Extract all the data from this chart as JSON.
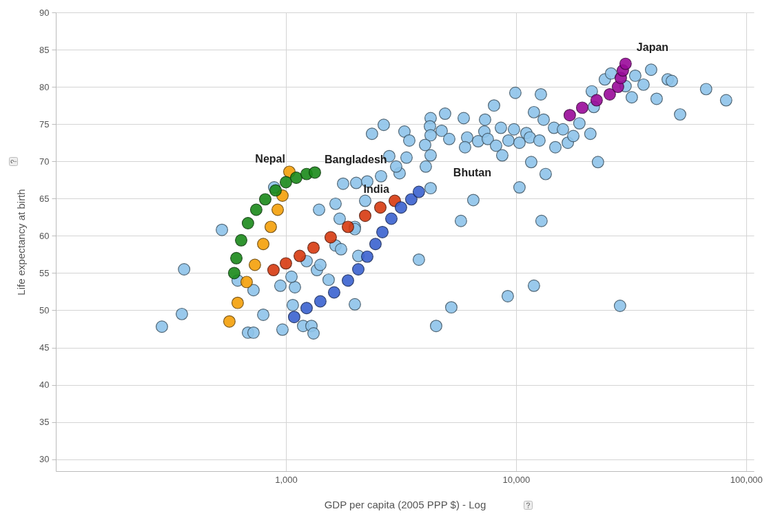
{
  "chart_data": {
    "type": "scatter",
    "xlabel": "GDP per capita (2005 PPP $) - Log",
    "ylabel": "Life expectancy at birth",
    "log": "x",
    "grid": true,
    "marker": "circle",
    "xlim": [
      100,
      108000
    ],
    "xticks": [
      {
        "value": 1000,
        "label": "1,000"
      },
      {
        "value": 10000,
        "label": "10,000"
      },
      {
        "value": 100000,
        "label": "100,000"
      }
    ],
    "ylim": [
      28.4,
      90
    ],
    "yticks": [
      30,
      35,
      40,
      45,
      50,
      55,
      60,
      65,
      70,
      75,
      80,
      85,
      90
    ],
    "series": [
      {
        "color": "#8ec4ea",
        "x": [
          289,
          353,
          361,
          527,
          617,
          684,
          723,
          966,
          797,
          723,
          946,
          1094,
          1057,
          1071,
          1188,
          1291,
          1318,
          1230,
          1364,
          1411,
          1533,
          1643,
          1736,
          1993,
          2063,
          1993,
          3782,
          5232,
          4495,
          9205,
          11960,
          28310,
          12900,
          5760,
          6522,
          10350,
          889,
          1393,
          1643,
          1772,
          2021,
          2256,
          2590,
          3119,
          2210,
          1993,
          1712,
          2661,
          3273,
          3436,
          4254,
          4225,
          4254,
          4026,
          4254,
          4053,
          4916,
          4751,
          5125,
          5924,
          6131,
          6003,
          6844,
          7334,
          8023,
          7283,
          7537,
          8190,
          8594,
          8713,
          9268,
          9931,
          9795,
          10350,
          11090,
          11480,
          11960,
          11640,
          12820,
          13180,
          12640,
          13450,
          14620,
          14820,
          15990,
          16790,
          17740,
          18850,
          21040,
          21340,
          21780,
          22700,
          24320,
          25880,
          29920,
          31840,
          32960,
          35810,
          38640,
          40830,
          45600,
          47540,
          51640,
          66990,
          81850,
          2366,
          3013,
          3342,
          2812,
          4254
        ],
        "values": [
          47.8,
          49.5,
          55.5,
          60.8,
          54.0,
          47.0,
          47.0,
          47.4,
          49.4,
          52.7,
          53.3,
          53.1,
          54.5,
          50.7,
          47.9,
          47.9,
          46.9,
          56.6,
          55.4,
          56.1,
          54.1,
          58.7,
          58.2,
          61.2,
          57.3,
          50.8,
          56.8,
          50.4,
          47.9,
          51.9,
          53.3,
          50.6,
          62.0,
          62.0,
          64.8,
          66.5,
          66.5,
          63.5,
          64.3,
          67.0,
          67.1,
          67.3,
          68.0,
          68.4,
          64.7,
          60.9,
          62.3,
          74.9,
          74.0,
          72.8,
          75.8,
          74.7,
          73.5,
          72.2,
          70.8,
          69.3,
          76.4,
          74.1,
          73.0,
          75.8,
          73.2,
          71.9,
          72.7,
          75.6,
          77.5,
          74.0,
          73.0,
          72.1,
          74.5,
          70.8,
          72.8,
          79.2,
          74.3,
          72.5,
          73.8,
          73.2,
          76.6,
          69.9,
          79.0,
          75.6,
          72.8,
          68.3,
          74.5,
          71.9,
          74.3,
          72.5,
          73.4,
          75.1,
          73.7,
          79.4,
          77.3,
          69.9,
          81.0,
          81.8,
          80.1,
          78.6,
          81.5,
          80.3,
          82.3,
          78.4,
          81.0,
          80.8,
          76.3,
          79.7,
          78.2,
          73.7,
          69.3,
          70.5,
          70.7,
          66.4
        ]
      },
      {
        "name": "Nepal",
        "color": "#f5a00a",
        "x": [
          568,
          617,
          675,
          733,
          797,
          859,
          921,
          966,
          1035
        ],
        "values": [
          48.5,
          51.0,
          53.8,
          56.1,
          58.9,
          61.2,
          63.5,
          65.4,
          68.6
        ]
      },
      {
        "name": "Bangladesh",
        "color": "#1a8a1a",
        "x": [
          596,
          609,
          639,
          684,
          743,
          813,
          902,
          1000,
          1109,
          1230,
          1336
        ],
        "values": [
          55.0,
          57.0,
          59.4,
          61.7,
          63.5,
          64.9,
          66.1,
          67.2,
          67.8,
          68.3,
          68.5
        ]
      },
      {
        "name": "India",
        "color": "#d83a10",
        "x": [
          883,
          1000,
          1148,
          1318,
          1565,
          1860,
          2210,
          2572,
          2972
        ],
        "values": [
          55.4,
          56.3,
          57.3,
          58.4,
          59.8,
          61.2,
          62.7,
          63.8,
          64.7
        ]
      },
      {
        "name": "Bhutan",
        "color": "#3a62d0",
        "x": [
          1086,
          1230,
          1411,
          1620,
          1860,
          2063,
          2256,
          2450,
          2626,
          2872,
          3162,
          3506,
          3782
        ],
        "values": [
          49.1,
          50.3,
          51.2,
          52.4,
          54.0,
          55.5,
          57.2,
          58.9,
          60.5,
          62.3,
          63.8,
          64.9,
          65.9
        ]
      },
      {
        "name": "Japan",
        "color": "#9a0a9a",
        "x": [
          17120,
          19390,
          22400,
          25540,
          27740,
          28520,
          29120,
          29920
        ],
        "values": [
          76.2,
          77.2,
          78.2,
          79.0,
          80.0,
          81.2,
          82.2,
          83.1
        ]
      }
    ]
  }
}
